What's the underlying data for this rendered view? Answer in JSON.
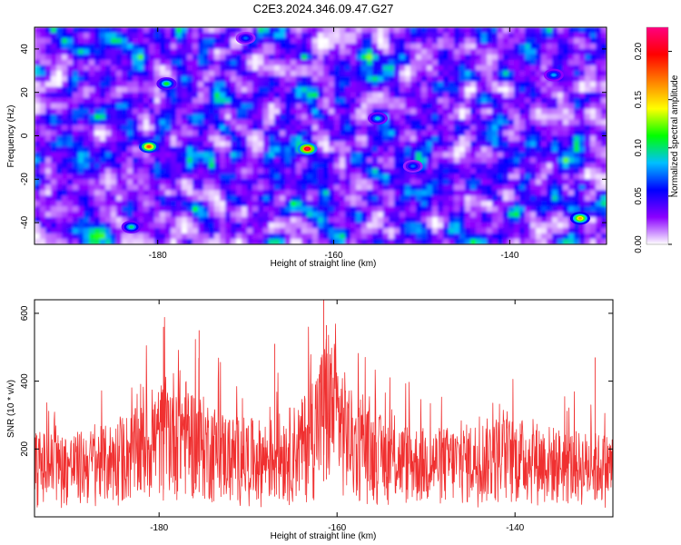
{
  "title": "C2E3.2024.346.09.47.G27",
  "chart_data": [
    {
      "type": "heatmap",
      "xlabel": "Height of straight line (km)",
      "ylabel": "Frequency (Hz)",
      "xlim": [
        -194,
        -129
      ],
      "ylim": [
        -50,
        50
      ],
      "xticks": [
        -180,
        -160,
        -140
      ],
      "xtick_labels": [
        "-180",
        "-160",
        "-140"
      ],
      "yticks": [
        40,
        20,
        0,
        -20,
        -40
      ],
      "ytick_labels": [
        "40",
        "20",
        "0",
        "-20",
        "-40"
      ],
      "colorbar": {
        "label": "Normalized spectral amplitude",
        "range": [
          0,
          0.225
        ],
        "ticks": [
          0.0,
          0.05,
          0.1,
          0.15,
          0.2
        ],
        "tick_labels": [
          "0.00",
          "0.05",
          "0.10",
          "0.15",
          "0.20"
        ],
        "colors": [
          "#ffffff",
          "#8b00ff",
          "#0000ff",
          "#00bfff",
          "#00ff00",
          "#ffff00",
          "#ff8000",
          "#ff0000",
          "#ff0080"
        ]
      },
      "peaks": [
        {
          "x": -181,
          "y": -5,
          "value": 0.18
        },
        {
          "x": -163,
          "y": -6,
          "value": 0.22
        },
        {
          "x": -132,
          "y": -38,
          "value": 0.16
        },
        {
          "x": -179,
          "y": 24,
          "value": 0.11
        },
        {
          "x": -183,
          "y": -42,
          "value": 0.1
        },
        {
          "x": -135,
          "y": 28,
          "value": 0.08
        },
        {
          "x": -151,
          "y": -14,
          "value": 0.07
        },
        {
          "x": -155,
          "y": 8,
          "value": 0.09
        },
        {
          "x": -170,
          "y": 45,
          "value": 0.07
        }
      ],
      "grid": false
    },
    {
      "type": "line",
      "xlabel": "Height of straight line (km)",
      "ylabel": "SNR (10 * v/v)",
      "xlim": [
        -194,
        -129
      ],
      "ylim": [
        0,
        640
      ],
      "xticks": [
        -180,
        -160,
        -140
      ],
      "xtick_labels": [
        "-180",
        "-160",
        "-140"
      ],
      "yticks": [
        200,
        400,
        600
      ],
      "ytick_labels": [
        "200",
        "400",
        "600"
      ],
      "color": "#f03030",
      "series": [
        {
          "x": [
            -194,
            -190,
            -186,
            -182,
            -180,
            -178,
            -176,
            -172,
            -168,
            -164,
            -162,
            -161,
            -158,
            -154,
            -150,
            -146,
            -142,
            -138,
            -134,
            -130
          ],
          "y": [
            170,
            165,
            180,
            220,
            260,
            300,
            250,
            200,
            190,
            230,
            320,
            380,
            230,
            190,
            175,
            180,
            200,
            190,
            170,
            165
          ]
        }
      ],
      "peaks": [
        {
          "x": -179.5,
          "y": 560
        },
        {
          "x": -175.5,
          "y": 550
        },
        {
          "x": -161.5,
          "y": 640
        },
        {
          "x": -161.2,
          "y": 565
        },
        {
          "x": -167,
          "y": 510
        },
        {
          "x": -131,
          "y": 470
        }
      ],
      "grid": false
    }
  ]
}
